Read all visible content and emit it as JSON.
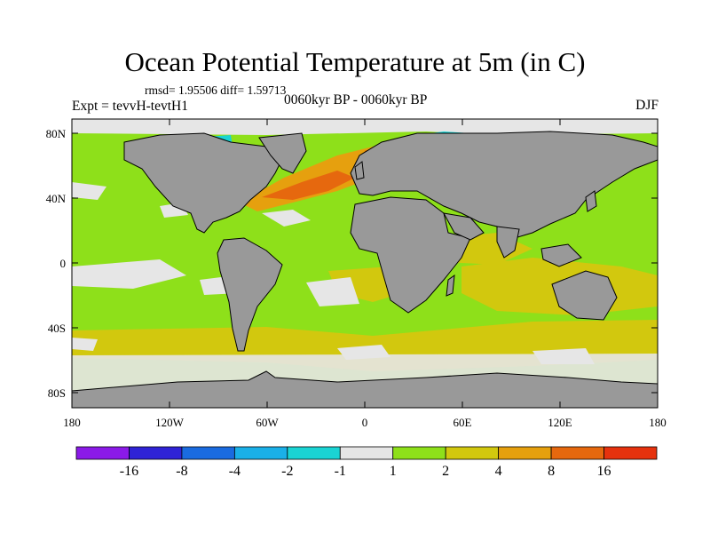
{
  "title": "Ocean Potential Temperature at 5m (in C)",
  "stats": "rmsd= 1.95506 diff= 1.59713",
  "experiment": "Expt = tevvH-tevtH1",
  "period": "0060kyr BP - 0060kyr BP",
  "season": "DJF",
  "y_ticks": [
    "80N",
    "40N",
    "0",
    "40S",
    "80S"
  ],
  "x_ticks": [
    "180",
    "120W",
    "60W",
    "0",
    "60E",
    "120E",
    "180"
  ],
  "colorbar": {
    "colors": [
      "#8b1ae8",
      "#2f23d6",
      "#1a6be0",
      "#1ab0e8",
      "#1ad4d4",
      "#e6e6e6",
      "#8ee01a",
      "#d2c80e",
      "#e6a00e",
      "#e6680e",
      "#e6320e"
    ],
    "labels": [
      "-16",
      "-8",
      "-4",
      "-2",
      "-1",
      "1",
      "2",
      "4",
      "8",
      "16"
    ]
  },
  "colors": {
    "land": "#999999",
    "ocean_base": "#8ee01a",
    "warm": "#d2c80e",
    "orange": "#e6a00e",
    "red_orange": "#e6680e",
    "near_zero": "#e6e6e6",
    "cyan": "#1ad4d4",
    "blue": "#1a6be0"
  }
}
